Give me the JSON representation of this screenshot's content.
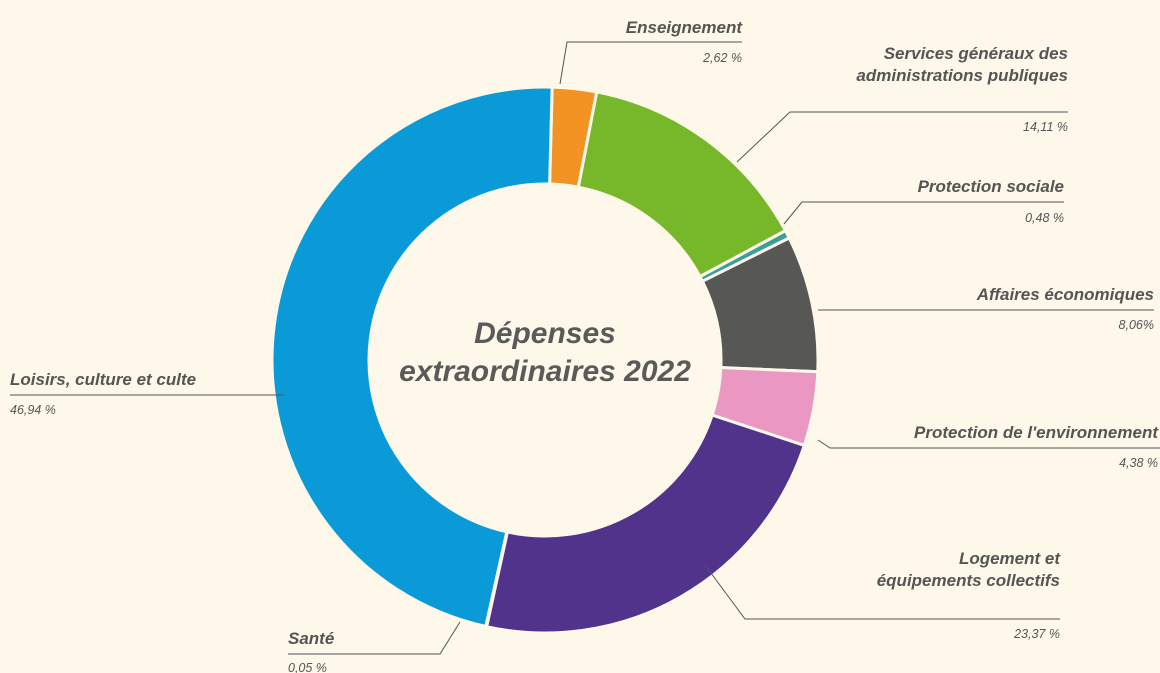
{
  "chart_data": {
    "type": "pie",
    "variant": "donut",
    "title": "Dépenses extraordinaires 2022",
    "title_lines": [
      "Dépenses",
      "extraordinaires 2022"
    ],
    "slices": [
      {
        "label": "Enseignement",
        "value": 2.62,
        "value_label": "2,62 %",
        "color": "#f39323"
      },
      {
        "label": "Services généraux des administrations publiques",
        "label_lines": [
          "Services généraux des",
          "administrations publiques"
        ],
        "value": 14.11,
        "value_label": "14,11 %",
        "color": "#76b82a"
      },
      {
        "label": "Protection sociale",
        "value": 0.48,
        "value_label": "0,48 %",
        "color": "#3a9e9a"
      },
      {
        "label": "Affaires économiques",
        "value": 8.06,
        "value_label": "8,06%",
        "color": "#575756"
      },
      {
        "label": "Protection de l'environnement",
        "value": 4.38,
        "value_label": "4,38 %",
        "color": "#ea97c2"
      },
      {
        "label": "Logement et équipements collectifs",
        "label_lines": [
          "Logement et",
          "équipements collectifs"
        ],
        "value": 23.37,
        "value_label": "23,37 %",
        "color": "#52338b"
      },
      {
        "label": "Santé",
        "value": 0.05,
        "value_label": "0,05 %",
        "color": "#a67c6d"
      },
      {
        "label": "Loisirs, culture et culte",
        "value": 46.94,
        "value_label": "46,94 %",
        "color": "#0b9ad8"
      }
    ]
  }
}
